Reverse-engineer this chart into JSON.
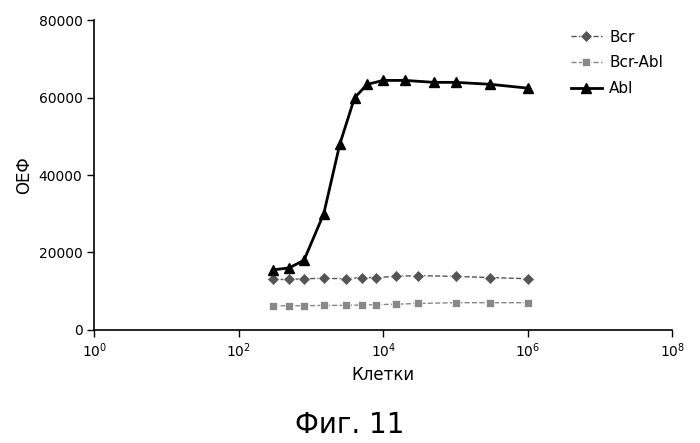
{
  "title": "Фиг. 11",
  "xlabel": "Клетки",
  "ylabel": "ОЕФ",
  "ylim": [
    0,
    80000
  ],
  "yticks": [
    0,
    20000,
    40000,
    60000,
    80000
  ],
  "xticks_exp": [
    0,
    2,
    4,
    6,
    8
  ],
  "bcr_x": [
    300,
    500,
    800,
    1500,
    3000,
    5000,
    8000,
    15000,
    30000,
    100000,
    300000,
    1000000
  ],
  "bcr_y": [
    13000,
    13000,
    13200,
    13300,
    13200,
    13500,
    13500,
    13800,
    14000,
    13800,
    13500,
    13200
  ],
  "bcr_abl_x": [
    300,
    500,
    800,
    1500,
    3000,
    5000,
    8000,
    15000,
    30000,
    100000,
    300000,
    1000000
  ],
  "bcr_abl_y": [
    6200,
    6200,
    6200,
    6300,
    6300,
    6400,
    6500,
    6600,
    6800,
    7000,
    7000,
    7000
  ],
  "abl_x": [
    300,
    500,
    800,
    1500,
    2500,
    4000,
    6000,
    10000,
    20000,
    50000,
    100000,
    300000,
    1000000
  ],
  "abl_y": [
    15500,
    16000,
    18000,
    30000,
    48000,
    60000,
    63500,
    64500,
    64500,
    64000,
    64000,
    63500,
    62500
  ],
  "bcr_color": "#555555",
  "bcr_abl_color": "#888888",
  "abl_color": "#000000",
  "legend_labels": [
    "Bcr",
    "Bcr-Abl",
    "Abl"
  ],
  "background_color": "#ffffff"
}
